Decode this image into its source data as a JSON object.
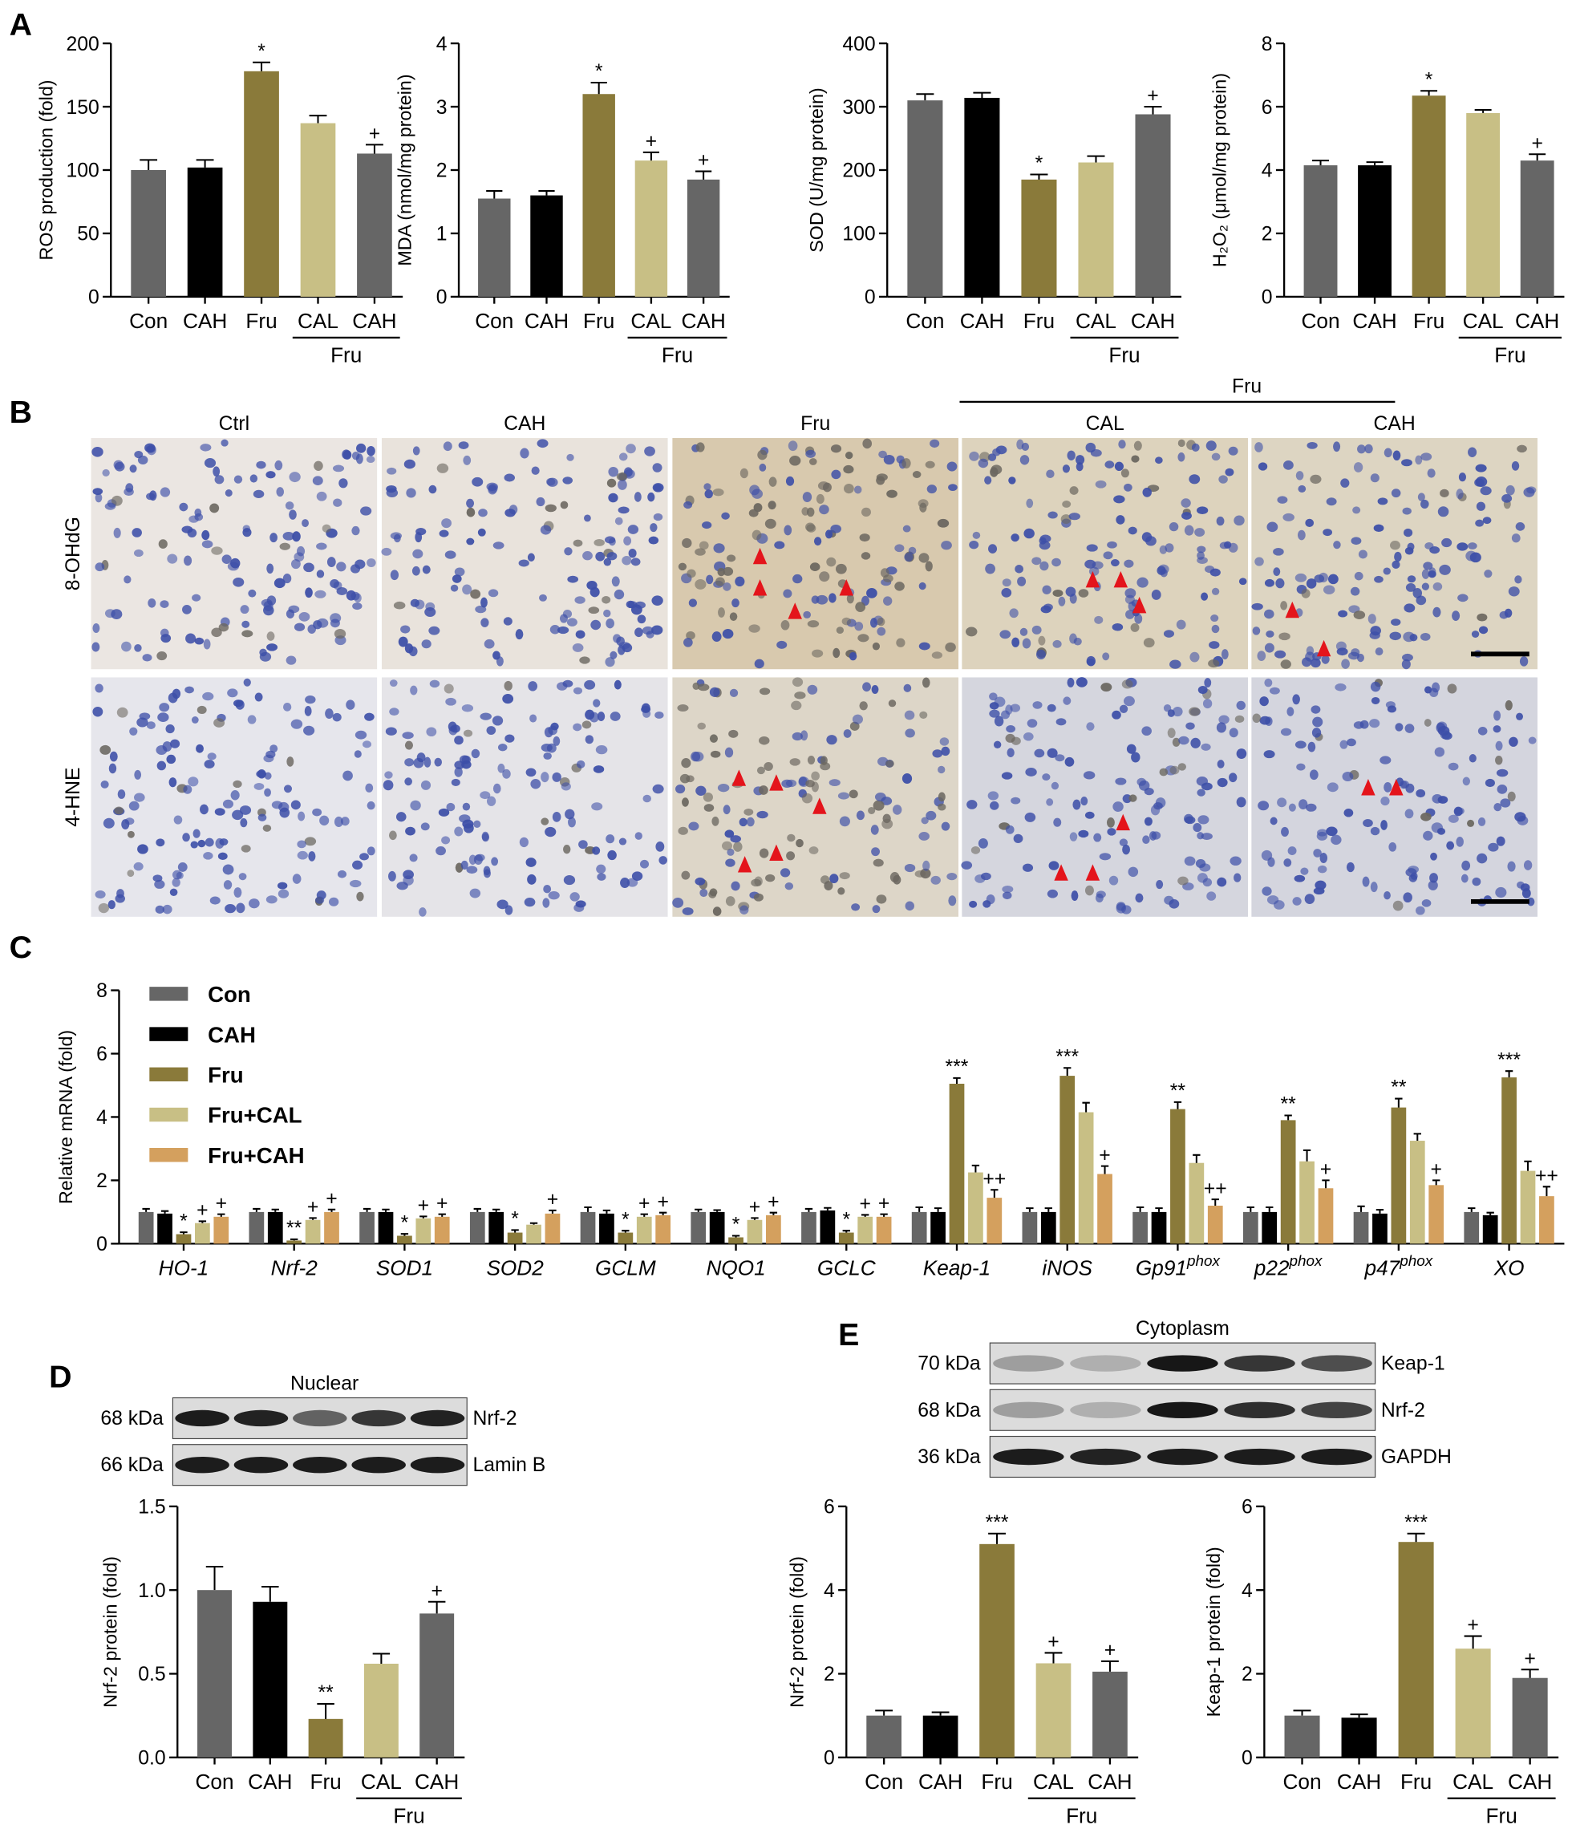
{
  "panel_labels": [
    "A",
    "B",
    "C",
    "D",
    "E"
  ],
  "chart_data": [
    {
      "type": "bar",
      "y_label": "ROS production (fold)",
      "categories": [
        "Con",
        "CAH",
        "Fru",
        "CAL",
        "CAH"
      ],
      "group_label": "Fru",
      "values": [
        100,
        102,
        178,
        137,
        113
      ],
      "errors": [
        8,
        6,
        7,
        6,
        7
      ],
      "annotations": [
        null,
        null,
        "*",
        null,
        "+"
      ],
      "colors": [
        "#666666",
        "#000000",
        "#8a7a3a",
        "#c8bf85",
        "#666666"
      ],
      "ylim": [
        0,
        200
      ],
      "yticks": [
        0,
        50,
        100,
        150,
        200
      ]
    },
    {
      "type": "bar",
      "y_label": "MDA (nmol/mg protein)",
      "categories": [
        "Con",
        "CAH",
        "Fru",
        "CAL",
        "CAH"
      ],
      "group_label": "Fru",
      "values": [
        1.55,
        1.6,
        3.2,
        2.15,
        1.85
      ],
      "errors": [
        0.12,
        0.07,
        0.18,
        0.13,
        0.13
      ],
      "annotations": [
        null,
        null,
        "*",
        "+",
        "+"
      ],
      "colors": [
        "#666666",
        "#000000",
        "#8a7a3a",
        "#c8bf85",
        "#666666"
      ],
      "ylim": [
        0,
        4
      ],
      "yticks": [
        0,
        1,
        2,
        3,
        4
      ]
    },
    {
      "type": "bar",
      "y_label": "SOD (U/mg protein)",
      "categories": [
        "Con",
        "CAH",
        "Fru",
        "CAL",
        "CAH"
      ],
      "group_label": "Fru",
      "values": [
        310,
        314,
        185,
        212,
        288
      ],
      "errors": [
        10,
        8,
        8,
        10,
        12
      ],
      "annotations": [
        null,
        null,
        "*",
        null,
        "+"
      ],
      "colors": [
        "#666666",
        "#000000",
        "#8a7a3a",
        "#c8bf85",
        "#666666"
      ],
      "ylim": [
        0,
        400
      ],
      "yticks": [
        0,
        100,
        200,
        300,
        400
      ]
    },
    {
      "type": "bar",
      "y_label": "H₂O₂ (μmol/mg protein)",
      "categories": [
        "Con",
        "CAH",
        "Fru",
        "CAL",
        "CAH"
      ],
      "group_label": "Fru",
      "values": [
        4.15,
        4.15,
        6.35,
        5.8,
        4.3
      ],
      "errors": [
        0.15,
        0.1,
        0.15,
        0.1,
        0.2
      ],
      "annotations": [
        null,
        null,
        "*",
        null,
        "+"
      ],
      "colors": [
        "#666666",
        "#000000",
        "#8a7a3a",
        "#c8bf85",
        "#666666"
      ],
      "ylim": [
        0,
        8
      ],
      "yticks": [
        0,
        2,
        4,
        6,
        8
      ]
    },
    {
      "type": "bar",
      "y_label": "Relative mRNA (fold)",
      "categories": [
        "HO-1",
        "Nrf-2",
        "SOD1",
        "SOD2",
        "GCLM",
        "NQO1",
        "GCLC",
        "Keap-1",
        "iNOS",
        "Gp91",
        "p22",
        "p47",
        "XO"
      ],
      "category_superscripts": [
        null,
        null,
        null,
        null,
        null,
        null,
        null,
        null,
        null,
        "phox",
        "phox",
        "phox",
        null
      ],
      "ylim": [
        0,
        8
      ],
      "yticks": [
        0,
        2,
        4,
        6,
        8
      ],
      "series": [
        {
          "name": "Con",
          "color": "#666666",
          "values": [
            1,
            1,
            1,
            1,
            1,
            1,
            1,
            1,
            1,
            1,
            1,
            1,
            1
          ],
          "errors": [
            0.1,
            0.1,
            0.1,
            0.1,
            0.15,
            0.08,
            0.1,
            0.15,
            0.12,
            0.15,
            0.15,
            0.18,
            0.12
          ],
          "annotations": [
            null,
            null,
            null,
            null,
            null,
            null,
            null,
            null,
            null,
            null,
            null,
            null,
            null
          ]
        },
        {
          "name": "CAH",
          "color": "#000000",
          "values": [
            0.95,
            1,
            1,
            1,
            0.95,
            1,
            1.05,
            1,
            1,
            1,
            1,
            0.95,
            0.9
          ],
          "errors": [
            0.08,
            0.08,
            0.08,
            0.08,
            0.1,
            0.06,
            0.08,
            0.12,
            0.12,
            0.12,
            0.15,
            0.12,
            0.08
          ],
          "annotations": [
            null,
            null,
            null,
            null,
            null,
            null,
            null,
            null,
            null,
            null,
            null,
            null,
            null
          ]
        },
        {
          "name": "Fru",
          "color": "#8a7a3a",
          "values": [
            0.3,
            0.1,
            0.25,
            0.35,
            0.35,
            0.2,
            0.35,
            5.05,
            5.3,
            4.25,
            3.9,
            4.3,
            5.25
          ],
          "errors": [
            0.06,
            0.04,
            0.06,
            0.08,
            0.06,
            0.05,
            0.06,
            0.18,
            0.25,
            0.22,
            0.15,
            0.28,
            0.2
          ],
          "annotations": [
            "*",
            "**",
            "*",
            "*",
            "*",
            "*",
            "*",
            "***",
            "***",
            "**",
            "**",
            "**",
            "***"
          ]
        },
        {
          "name": "Fru+CAL",
          "color": "#c8bf85",
          "values": [
            0.65,
            0.75,
            0.8,
            0.6,
            0.85,
            0.75,
            0.85,
            2.25,
            4.15,
            2.55,
            2.6,
            3.25,
            2.3
          ],
          "errors": [
            0.06,
            0.06,
            0.06,
            0.05,
            0.08,
            0.06,
            0.06,
            0.22,
            0.3,
            0.25,
            0.35,
            0.22,
            0.3
          ],
          "annotations": [
            "+",
            "+",
            "+",
            null,
            "+",
            "+",
            "+",
            null,
            null,
            null,
            null,
            null,
            null
          ]
        },
        {
          "name": "Fru+CAH",
          "color": "#d4a05e",
          "values": [
            0.85,
            1,
            0.85,
            0.95,
            0.9,
            0.9,
            0.85,
            1.45,
            2.2,
            1.2,
            1.75,
            1.85,
            1.5
          ],
          "errors": [
            0.08,
            0.08,
            0.08,
            0.1,
            0.08,
            0.08,
            0.08,
            0.25,
            0.25,
            0.2,
            0.25,
            0.15,
            0.3
          ],
          "annotations": [
            "+",
            "+",
            "+",
            "+",
            "+",
            "+",
            "+",
            "++",
            "+",
            "++",
            "+",
            "+",
            "++"
          ]
        }
      ]
    },
    {
      "type": "bar",
      "y_label": "Nrf-2 protein (fold)",
      "categories": [
        "Con",
        "CAH",
        "Fru",
        "CAL",
        "CAH"
      ],
      "group_label": "Fru",
      "values": [
        1,
        0.93,
        0.23,
        0.56,
        0.86
      ],
      "errors": [
        0.14,
        0.09,
        0.09,
        0.06,
        0.07
      ],
      "annotations": [
        null,
        null,
        "**",
        null,
        "+"
      ],
      "colors": [
        "#666666",
        "#000000",
        "#8a7a3a",
        "#c8bf85",
        "#666666"
      ],
      "ylim": [
        0,
        1.5
      ],
      "yticks": [
        {
          "value": 0,
          "label": "0.0"
        },
        {
          "value": 0.5,
          "label": "0.5"
        },
        {
          "value": 1,
          "label": "1.0"
        },
        {
          "value": 1.5,
          "label": "1.5"
        }
      ]
    },
    {
      "type": "bar",
      "y_label": "Nrf-2 protein (fold)",
      "categories": [
        "Con",
        "CAH",
        "Fru",
        "CAL",
        "CAH"
      ],
      "group_label": "Fru",
      "values": [
        1,
        1,
        5.1,
        2.25,
        2.05
      ],
      "errors": [
        0.12,
        0.08,
        0.25,
        0.25,
        0.25
      ],
      "annotations": [
        null,
        null,
        "***",
        "+",
        "+"
      ],
      "colors": [
        "#666666",
        "#000000",
        "#8a7a3a",
        "#c8bf85",
        "#666666"
      ],
      "ylim": [
        0,
        6
      ],
      "yticks": [
        0,
        2,
        4,
        6
      ]
    },
    {
      "type": "bar",
      "y_label": "Keap-1 protein (fold)",
      "categories": [
        "Con",
        "CAH",
        "Fru",
        "CAL",
        "CAH"
      ],
      "group_label": "Fru",
      "values": [
        1,
        0.95,
        5.15,
        2.6,
        1.9
      ],
      "errors": [
        0.12,
        0.08,
        0.2,
        0.3,
        0.2
      ],
      "annotations": [
        null,
        null,
        "***",
        "+",
        "+"
      ],
      "colors": [
        "#666666",
        "#000000",
        "#8a7a3a",
        "#c8bf85",
        "#666666"
      ],
      "ylim": [
        0,
        6
      ],
      "yticks": [
        0,
        2,
        4,
        6
      ]
    }
  ],
  "micrographs": {
    "columns": [
      "Ctrl",
      "CAH",
      "Fru",
      "CAL",
      "CAH"
    ],
    "group_label": "Fru",
    "rows": [
      "8-OHdG",
      "4-HNE"
    ]
  },
  "blots": [
    {
      "title": "Nuclear",
      "rows": [
        {
          "size": "68 kDa",
          "name": "Nrf-2"
        },
        {
          "size": "66 kDa",
          "name": "Lamin B"
        }
      ]
    },
    {
      "title": "Cytoplasm",
      "rows": [
        {
          "size": "70 kDa",
          "name": "Keap-1"
        },
        {
          "size": "68 kDa",
          "name": "Nrf-2"
        },
        {
          "size": "36 kDa",
          "name": "GAPDH"
        }
      ]
    }
  ]
}
